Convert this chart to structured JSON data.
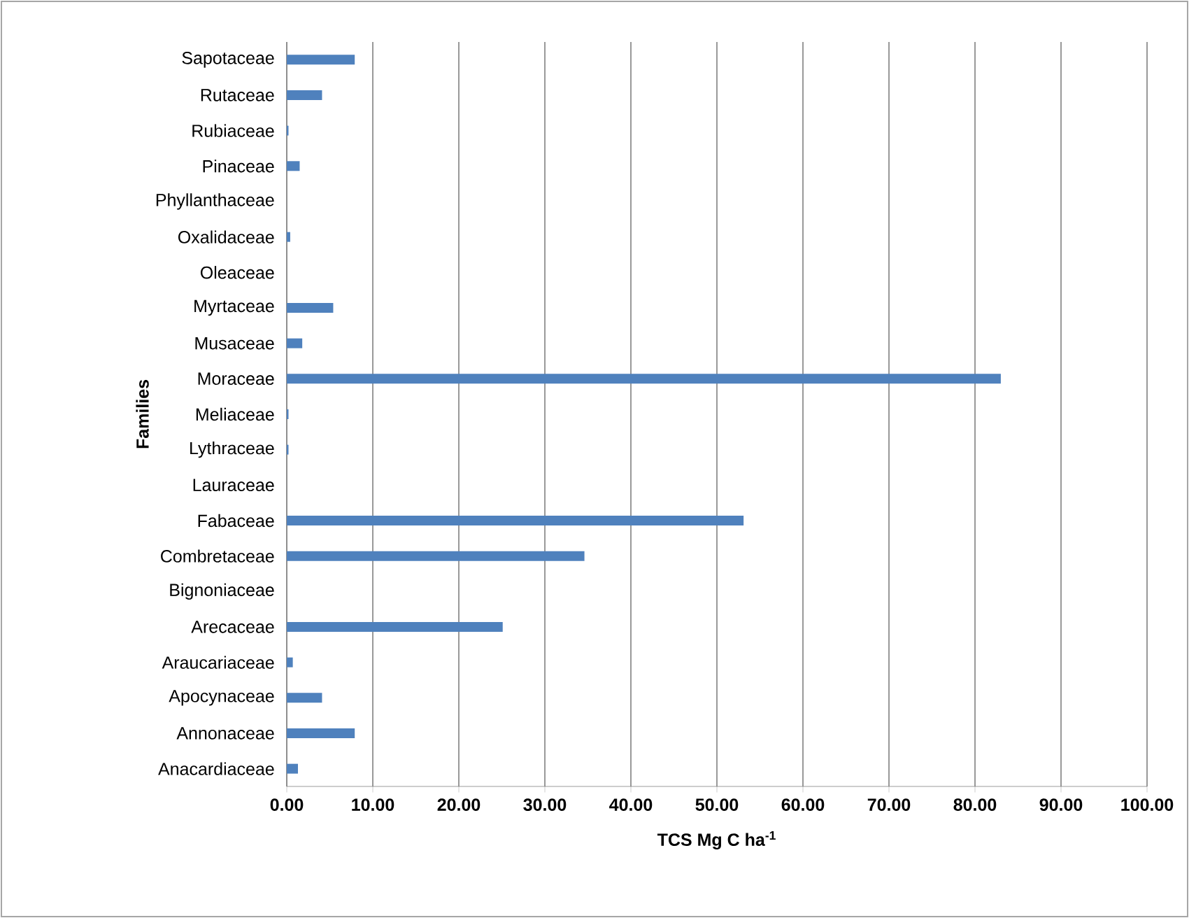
{
  "chart_data": {
    "type": "bar",
    "orientation": "horizontal",
    "xlabel": "TCS Mg C ha$^{-1}$",
    "ylabel": "Families",
    "categories": [
      "Sapotaceae",
      "Rutaceae",
      "Rubiaceae",
      "Pinaceae",
      "Phyllanthaceae",
      "Oxalidaceae",
      "Oleaceae",
      "Myrtaceae",
      "Musaceae",
      "Moraceae",
      "Meliaceae",
      "Lythraceae",
      "Lauraceae",
      "Fabaceae",
      "Combretaceae",
      "Bignoniaceae",
      "Arecaceae",
      "Araucariaceae",
      "Apocynaceae",
      "Annonaceae",
      "Anacardiaceae"
    ],
    "values": [
      7.9,
      4.1,
      0.2,
      1.5,
      0,
      0.4,
      0,
      5.4,
      1.8,
      83.0,
      0.2,
      0.2,
      0,
      53.1,
      34.6,
      0,
      25.1,
      0.7,
      4.1,
      7.9,
      1.3
    ],
    "color": "#4f81bd",
    "xlim": [
      0,
      100
    ],
    "xticks": [
      {
        "value": 0,
        "label": "0.00"
      },
      {
        "value": 10,
        "label": "10.00"
      },
      {
        "value": 20,
        "label": "20.00"
      },
      {
        "value": 30,
        "label": "30.00"
      },
      {
        "value": 40,
        "label": "40.00"
      },
      {
        "value": 50,
        "label": "50.00"
      },
      {
        "value": 60,
        "label": "60.00"
      },
      {
        "value": 70,
        "label": "70.00"
      },
      {
        "value": 80,
        "label": "80.00"
      },
      {
        "value": 90,
        "label": "90.00"
      },
      {
        "value": 100,
        "label": "100.00"
      }
    ],
    "grid": "x"
  }
}
